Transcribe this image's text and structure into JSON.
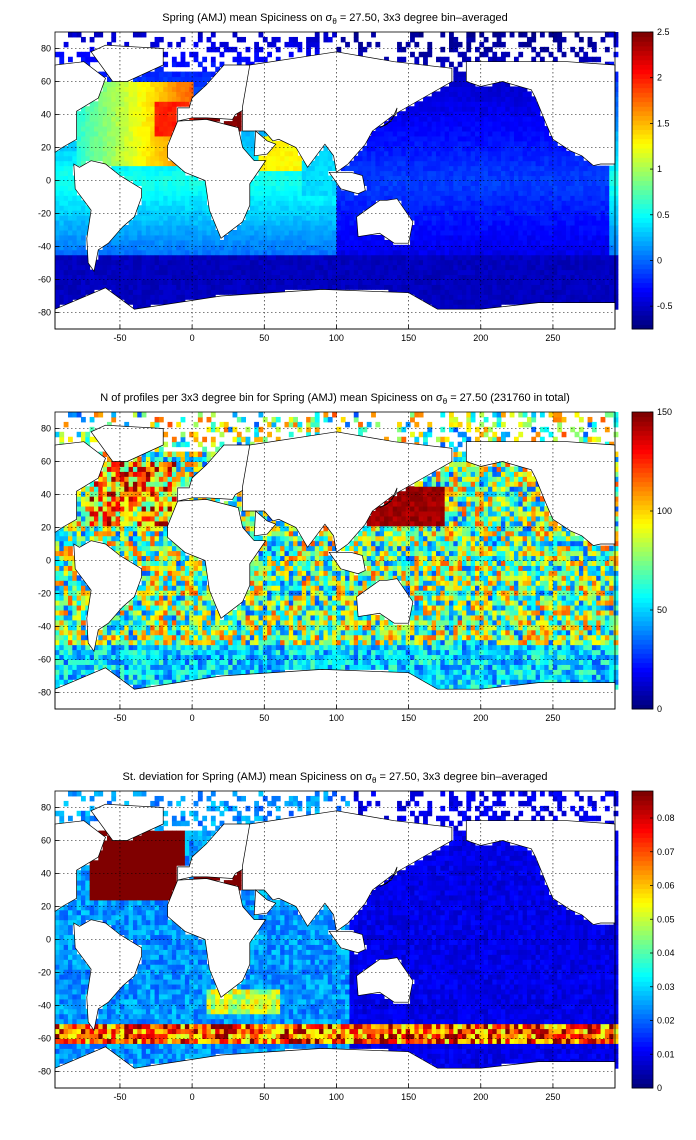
{
  "chart_data": [
    {
      "type": "heatmap",
      "title": "Spring (AMJ) mean Spiciness on σ_θ = 27.50, 3x3 degree bin–averaged",
      "title_parts": {
        "pre": "Spring (AMJ) mean Spiciness on σ",
        "sub": "θ",
        "post": " = 27.50, 3x3 degree bin–averaged"
      },
      "xlim": [
        -95,
        293
      ],
      "ylim": [
        -90,
        90
      ],
      "x_ticks": [
        -50,
        0,
        50,
        100,
        150,
        200,
        250
      ],
      "y_ticks": [
        -80,
        -60,
        -40,
        -20,
        0,
        20,
        40,
        60,
        80
      ],
      "grid": true,
      "colormap": "jet",
      "clim": [
        -0.75,
        2.5
      ],
      "colorbar_ticks": [
        "2.5",
        "2",
        "1.5",
        "1",
        "0.5",
        "0",
        "-0.5"
      ],
      "colorbar_tick_values": [
        2.5,
        2,
        1.5,
        1,
        0.5,
        0,
        -0.5
      ],
      "regions": [
        {
          "name": "North Atlantic",
          "value": 1.6
        },
        {
          "name": "Mediterranean outflow",
          "value": 2.5
        },
        {
          "name": "Red Sea / Arabian Sea",
          "value": 1.3
        },
        {
          "name": "South Atlantic",
          "value": 0.2
        },
        {
          "name": "Indian Ocean",
          "value": 0.3
        },
        {
          "name": "Pacific Ocean",
          "value": -0.3
        },
        {
          "name": "Southern Ocean",
          "value": -0.6
        }
      ]
    },
    {
      "type": "heatmap",
      "title": "N of profiles per 3x3 degree bin for Spring (AMJ) mean Spiciness on σ_θ = 27.50 (231760 in total)",
      "title_parts": {
        "pre": "N of profiles per 3x3 degree bin for Spring (AMJ) mean Spiciness on σ",
        "sub": "θ",
        "post": " = 27.50 (231760 in total)"
      },
      "xlim": [
        -95,
        293
      ],
      "ylim": [
        -90,
        90
      ],
      "x_ticks": [
        -50,
        0,
        50,
        100,
        150,
        200,
        250
      ],
      "y_ticks": [
        -80,
        -60,
        -40,
        -20,
        0,
        20,
        40,
        60,
        80
      ],
      "grid": true,
      "colormap": "jet",
      "clim": [
        0,
        150
      ],
      "colorbar_ticks": [
        "150",
        "100",
        "50",
        "0"
      ],
      "colorbar_tick_values": [
        150,
        100,
        50,
        0
      ],
      "total_profiles": 231760,
      "regions": [
        {
          "name": "Kuroshio region",
          "value": 150
        },
        {
          "name": "North Atlantic",
          "value": 110
        },
        {
          "name": "Southern Ocean band",
          "value": 90
        },
        {
          "name": "Equatorial Pacific",
          "value": 75
        },
        {
          "name": "Open ocean typical",
          "value": 55
        }
      ]
    },
    {
      "type": "heatmap",
      "title": "St. deviation for Spring (AMJ) mean Spiciness on σ_θ = 27.50, 3x3 degree bin–averaged",
      "title_parts": {
        "pre": "St. deviation for Spring (AMJ) mean Spiciness on σ",
        "sub": "θ",
        "post": " = 27.50, 3x3 degree bin–averaged"
      },
      "xlim": [
        -95,
        293
      ],
      "ylim": [
        -90,
        90
      ],
      "x_ticks": [
        -50,
        0,
        50,
        100,
        150,
        200,
        250
      ],
      "y_ticks": [
        -80,
        -60,
        -40,
        -20,
        0,
        20,
        40,
        60,
        80
      ],
      "grid": true,
      "colormap": "jet",
      "clim": [
        0,
        0.088
      ],
      "colorbar_ticks": [
        "0.08",
        "0.07",
        "0.06",
        "0.05",
        "0.04",
        "0.03",
        "0.02",
        "0.01",
        "0"
      ],
      "colorbar_tick_values": [
        0.08,
        0.07,
        0.06,
        0.05,
        0.04,
        0.03,
        0.02,
        0.01,
        0
      ],
      "regions": [
        {
          "name": "North Atlantic",
          "value": 0.088
        },
        {
          "name": "Mediterranean outflow",
          "value": 0.088
        },
        {
          "name": "Southern Ocean front",
          "value": 0.055
        },
        {
          "name": "Agulhas region",
          "value": 0.045
        },
        {
          "name": "Pacific Ocean",
          "value": 0.008
        }
      ]
    }
  ]
}
